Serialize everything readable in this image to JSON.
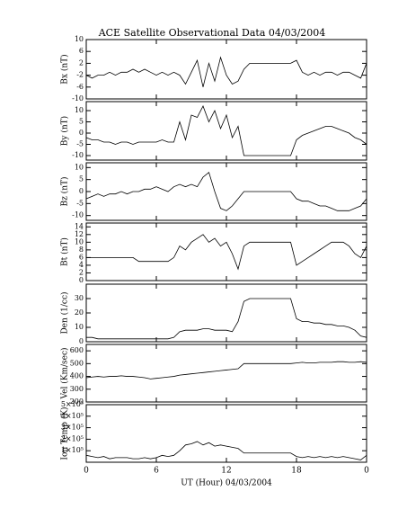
{
  "chart_data": [
    {
      "type": "line",
      "title": "ACE Satellite Observational Data   04/03/2004",
      "ylabel": "Bx (nT)",
      "color": "#000000",
      "x": [
        0,
        0.5,
        1,
        1.5,
        2,
        2.5,
        3,
        3.5,
        4,
        4.5,
        5,
        5.5,
        6,
        6.5,
        7,
        7.5,
        8,
        8.5,
        9,
        9.5,
        10,
        10.5,
        11,
        11.5,
        12,
        12.5,
        13,
        13.5,
        14,
        14.5,
        15,
        15.5,
        16,
        16.5,
        17,
        17.5,
        18,
        18.5,
        19,
        19.5,
        20,
        20.5,
        21,
        21.5,
        22,
        22.5,
        23,
        23.5,
        24
      ],
      "values": [
        -2,
        -3,
        -2,
        -2,
        -1,
        -2,
        -1,
        -1,
        0,
        -1,
        0,
        -1,
        -2,
        -1,
        -2,
        -1,
        -2,
        -5,
        -1,
        3,
        -6,
        2,
        -4,
        4,
        -2,
        -5,
        -4,
        0,
        2,
        2,
        2,
        2,
        2,
        2,
        2,
        2,
        3,
        -1,
        -2,
        -1,
        -2,
        -1,
        -1,
        -2,
        -1,
        -1,
        -2,
        -3,
        2
      ],
      "xlim": [
        0,
        24
      ],
      "xticks": [
        0,
        6,
        12,
        18,
        {
          "value": 24,
          "label": "0"
        }
      ],
      "ylim": [
        -10,
        10
      ],
      "yticks": [
        10,
        6,
        2,
        -2,
        -6,
        -10
      ]
    },
    {
      "type": "line",
      "ylabel": "By (nT)",
      "color": "#000000",
      "x": [
        0,
        0.5,
        1,
        1.5,
        2,
        2.5,
        3,
        3.5,
        4,
        4.5,
        5,
        5.5,
        6,
        6.5,
        7,
        7.5,
        8,
        8.5,
        9,
        9.5,
        10,
        10.5,
        11,
        11.5,
        12,
        12.5,
        13,
        13.5,
        14,
        14.5,
        15,
        15.5,
        16,
        16.5,
        17,
        17.5,
        18,
        18.5,
        19,
        19.5,
        20,
        20.5,
        21,
        21.5,
        22,
        22.5,
        23,
        23.5,
        24
      ],
      "values": [
        -2,
        -3,
        -3,
        -4,
        -4,
        -5,
        -4,
        -4,
        -5,
        -4,
        -4,
        -4,
        -4,
        -3,
        -4,
        -4,
        5,
        -3,
        8,
        7,
        12,
        5,
        10,
        2,
        8,
        -2,
        3,
        -10,
        -10,
        -10,
        -10,
        -10,
        -10,
        -10,
        -10,
        -10,
        -3,
        -1,
        0,
        1,
        2,
        3,
        3,
        2,
        1,
        0,
        -2,
        -3,
        -5
      ],
      "xlim": [
        0,
        24
      ],
      "xticks": [
        0,
        6,
        12,
        18,
        {
          "value": 24,
          "label": "0"
        }
      ],
      "ylim": [
        -12,
        14
      ],
      "yticks": [
        10,
        5,
        0,
        -5,
        -10
      ]
    },
    {
      "type": "line",
      "ylabel": "Bz (nT)",
      "color": "#000000",
      "x": [
        0,
        0.5,
        1,
        1.5,
        2,
        2.5,
        3,
        3.5,
        4,
        4.5,
        5,
        5.5,
        6,
        6.5,
        7,
        7.5,
        8,
        8.5,
        9,
        9.5,
        10,
        10.5,
        11,
        11.5,
        12,
        12.5,
        13,
        13.5,
        14,
        14.5,
        15,
        15.5,
        16,
        16.5,
        17,
        17.5,
        18,
        18.5,
        19,
        19.5,
        20,
        20.5,
        21,
        21.5,
        22,
        22.5,
        23,
        23.5,
        24
      ],
      "values": [
        -3,
        -2,
        -1,
        -2,
        -1,
        -1,
        0,
        -1,
        0,
        0,
        1,
        1,
        2,
        1,
        0,
        2,
        3,
        2,
        3,
        2,
        6,
        8,
        0,
        -7,
        -8,
        -6,
        -3,
        0,
        0,
        0,
        0,
        0,
        0,
        0,
        0,
        0,
        -3,
        -4,
        -4,
        -5,
        -6,
        -6,
        -7,
        -8,
        -8,
        -8,
        -7,
        -6,
        -3
      ],
      "xlim": [
        0,
        24
      ],
      "xticks": [
        0,
        6,
        12,
        18,
        {
          "value": 24,
          "label": "0"
        }
      ],
      "ylim": [
        -12,
        12
      ],
      "yticks": [
        10,
        5,
        0,
        -5,
        -10
      ]
    },
    {
      "type": "line",
      "ylabel": "Bt (nT)",
      "color": "#000000",
      "x": [
        0,
        0.5,
        1,
        1.5,
        2,
        2.5,
        3,
        3.5,
        4,
        4.5,
        5,
        5.5,
        6,
        6.5,
        7,
        7.5,
        8,
        8.5,
        9,
        9.5,
        10,
        10.5,
        11,
        11.5,
        12,
        12.5,
        13,
        13.5,
        14,
        14.5,
        15,
        15.5,
        16,
        16.5,
        17,
        17.5,
        18,
        18.5,
        19,
        19.5,
        20,
        20.5,
        21,
        21.5,
        22,
        22.5,
        23,
        23.5,
        24
      ],
      "values": [
        6,
        6,
        6,
        6,
        6,
        6,
        6,
        6,
        6,
        5,
        5,
        5,
        5,
        5,
        5,
        6,
        9,
        8,
        10,
        11,
        12,
        10,
        11,
        9,
        10,
        7,
        3,
        9,
        10,
        10,
        10,
        10,
        10,
        10,
        10,
        10,
        4,
        5,
        6,
        7,
        8,
        9,
        10,
        10,
        10,
        9,
        7,
        6,
        9
      ],
      "xlim": [
        0,
        24
      ],
      "xticks": [
        0,
        6,
        12,
        18,
        {
          "value": 24,
          "label": "0"
        }
      ],
      "ylim": [
        0,
        15
      ],
      "yticks": [
        14,
        12,
        10,
        8,
        6,
        4,
        2,
        0
      ]
    },
    {
      "type": "line",
      "ylabel": "Den (1/cc)",
      "color": "#000000",
      "x": [
        0,
        0.5,
        1,
        1.5,
        2,
        2.5,
        3,
        3.5,
        4,
        4.5,
        5,
        5.5,
        6,
        6.5,
        7,
        7.5,
        8,
        8.5,
        9,
        9.5,
        10,
        10.5,
        11,
        11.5,
        12,
        12.5,
        13,
        13.5,
        14,
        14.5,
        15,
        15.5,
        16,
        16.5,
        17,
        17.5,
        18,
        18.5,
        19,
        19.5,
        20,
        20.5,
        21,
        21.5,
        22,
        22.5,
        23,
        23.5,
        24
      ],
      "values": [
        3,
        3,
        2,
        2,
        2,
        2,
        2,
        2,
        2,
        2,
        2,
        2,
        2,
        2,
        2,
        3,
        7,
        8,
        8,
        8,
        9,
        9,
        8,
        8,
        8,
        7,
        14,
        28,
        30,
        30,
        30,
        30,
        30,
        30,
        30,
        30,
        16,
        14,
        14,
        13,
        13,
        12,
        12,
        11,
        11,
        10,
        8,
        4,
        3
      ],
      "xlim": [
        0,
        24
      ],
      "xticks": [
        0,
        6,
        12,
        18,
        {
          "value": 24,
          "label": "0"
        }
      ],
      "ylim": [
        0,
        40
      ],
      "yticks": [
        30,
        20,
        10,
        0
      ]
    },
    {
      "type": "line",
      "ylabel": "Vel (Km/sec)",
      "color": "#000000",
      "x": [
        0,
        0.5,
        1,
        1.5,
        2,
        2.5,
        3,
        3.5,
        4,
        4.5,
        5,
        5.5,
        6,
        6.5,
        7,
        7.5,
        8,
        8.5,
        9,
        9.5,
        10,
        10.5,
        11,
        11.5,
        12,
        12.5,
        13,
        13.5,
        14,
        14.5,
        15,
        15.5,
        16,
        16.5,
        17,
        17.5,
        18,
        18.5,
        19,
        19.5,
        20,
        20.5,
        21,
        21.5,
        22,
        22.5,
        23,
        23.5,
        24
      ],
      "values": [
        390,
        395,
        400,
        395,
        400,
        400,
        405,
        400,
        400,
        395,
        390,
        380,
        385,
        390,
        395,
        400,
        410,
        415,
        420,
        425,
        430,
        435,
        440,
        445,
        450,
        455,
        460,
        500,
        500,
        500,
        500,
        500,
        500,
        500,
        500,
        500,
        505,
        510,
        505,
        505,
        510,
        510,
        510,
        515,
        515,
        510,
        510,
        515,
        510
      ],
      "xlim": [
        0,
        24
      ],
      "xticks": [
        0,
        6,
        12,
        18,
        {
          "value": 24,
          "label": "0"
        }
      ],
      "ylim": [
        200,
        650
      ],
      "yticks": [
        600,
        500,
        400,
        300,
        200
      ]
    },
    {
      "type": "line",
      "ylabel": "Ion Temp (K)",
      "xlabel": "UT (Hour)   04/03/2004",
      "color": "#000000",
      "x": [
        0,
        0.5,
        1,
        1.5,
        2,
        2.5,
        3,
        3.5,
        4,
        4.5,
        5,
        5.5,
        6,
        6.5,
        7,
        7.5,
        8,
        8.5,
        9,
        9.5,
        10,
        10.5,
        11,
        11.5,
        12,
        12.5,
        13,
        13.5,
        14,
        14.5,
        15,
        15.5,
        16,
        16.5,
        17,
        17.5,
        18,
        18.5,
        19,
        19.5,
        20,
        20.5,
        21,
        21.5,
        22,
        22.5,
        23,
        23.5,
        24
      ],
      "values": [
        60000,
        50000,
        40000,
        50000,
        30000,
        40000,
        40000,
        40000,
        30000,
        30000,
        40000,
        30000,
        40000,
        60000,
        50000,
        60000,
        100000,
        150000,
        160000,
        180000,
        150000,
        170000,
        140000,
        150000,
        140000,
        130000,
        120000,
        80000,
        80000,
        80000,
        80000,
        80000,
        80000,
        80000,
        80000,
        80000,
        50000,
        40000,
        50000,
        40000,
        50000,
        40000,
        50000,
        40000,
        50000,
        40000,
        30000,
        20000,
        60000
      ],
      "xlim": [
        0,
        24
      ],
      "xticks": [
        0,
        6,
        12,
        18,
        {
          "value": 24,
          "label": "0"
        }
      ],
      "ylim": [
        0,
        500000
      ],
      "yticks": [
        {
          "value": 500000,
          "label": "5×10⁵"
        },
        {
          "value": 400000,
          "label": "4×10⁵"
        },
        {
          "value": 300000,
          "label": "3×10⁵"
        },
        {
          "value": 200000,
          "label": "2×10⁵"
        },
        {
          "value": 100000,
          "label": "1×10⁵"
        }
      ]
    }
  ]
}
